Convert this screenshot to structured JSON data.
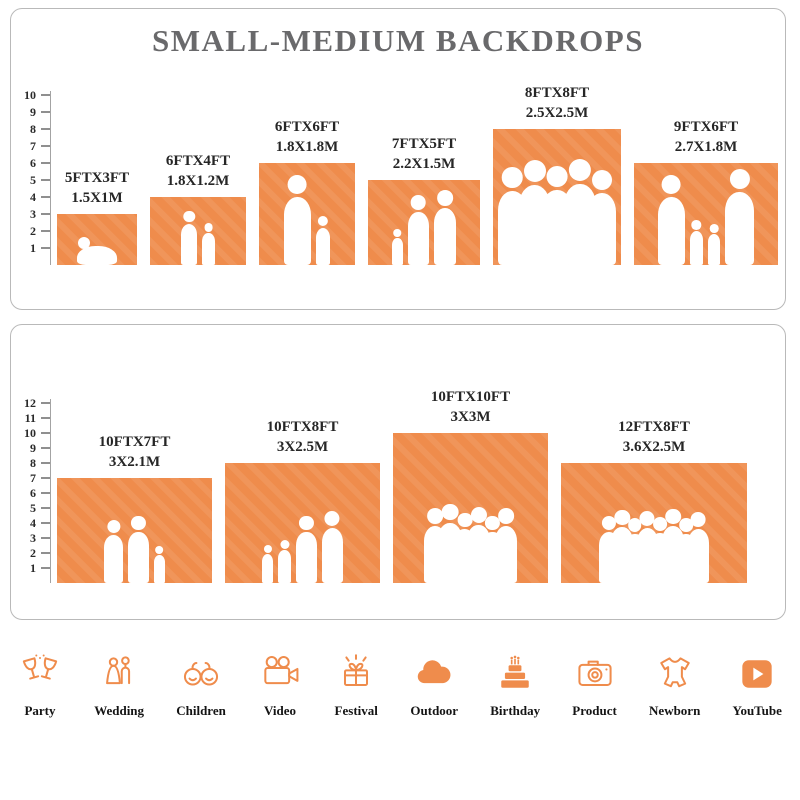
{
  "colors": {
    "accent": "#EF8C4C",
    "title": "#69696B",
    "label": "#262626"
  },
  "chart_data": [
    {
      "type": "bar",
      "title": "SMALL-MEDIUM BACKDROPS",
      "unit": "FT",
      "ruler_max": 10,
      "ruler_ticks": [
        1,
        2,
        3,
        4,
        5,
        6,
        7,
        8,
        9,
        10
      ],
      "bars": [
        {
          "label_ft": "5FTX3FT",
          "label_m": "1.5X1M",
          "width_ft": 5,
          "height_ft": 3
        },
        {
          "label_ft": "6FTX4FT",
          "label_m": "1.8X1.2M",
          "width_ft": 6,
          "height_ft": 4
        },
        {
          "label_ft": "6FTX6FT",
          "label_m": "1.8X1.8M",
          "width_ft": 6,
          "height_ft": 6
        },
        {
          "label_ft": "7FTX5FT",
          "label_m": "2.2X1.5M",
          "width_ft": 7,
          "height_ft": 5
        },
        {
          "label_ft": "8FTX8FT",
          "label_m": "2.5X2.5M",
          "width_ft": 8,
          "height_ft": 8
        },
        {
          "label_ft": "9FTX6FT",
          "label_m": "2.7X1.8M",
          "width_ft": 9,
          "height_ft": 6
        }
      ]
    },
    {
      "type": "bar",
      "unit": "FT",
      "ruler_max": 12,
      "ruler_ticks": [
        1,
        2,
        3,
        4,
        5,
        6,
        7,
        8,
        9,
        10,
        11,
        12
      ],
      "bars": [
        {
          "label_ft": "10FTX7FT",
          "label_m": "3X2.1M",
          "width_ft": 10,
          "height_ft": 7
        },
        {
          "label_ft": "10FTX8FT",
          "label_m": "3X2.5M",
          "width_ft": 10,
          "height_ft": 8
        },
        {
          "label_ft": "10FTX10FT",
          "label_m": "3X3M",
          "width_ft": 10,
          "height_ft": 10
        },
        {
          "label_ft": "12FTX8FT",
          "label_m": "3.6X2.5M",
          "width_ft": 12,
          "height_ft": 8
        }
      ]
    }
  ],
  "categories": [
    {
      "icon": "party-icon",
      "label": "Party"
    },
    {
      "icon": "wedding-icon",
      "label": "Wedding"
    },
    {
      "icon": "children-icon",
      "label": "Children"
    },
    {
      "icon": "video-icon",
      "label": "Video"
    },
    {
      "icon": "festival-icon",
      "label": "Festival"
    },
    {
      "icon": "outdoor-icon",
      "label": "Outdoor"
    },
    {
      "icon": "birthday-icon",
      "label": "Birthday"
    },
    {
      "icon": "product-icon",
      "label": "Product"
    },
    {
      "icon": "newborn-icon",
      "label": "Newborn"
    },
    {
      "icon": "youtube-icon",
      "label": "YouTube"
    }
  ]
}
